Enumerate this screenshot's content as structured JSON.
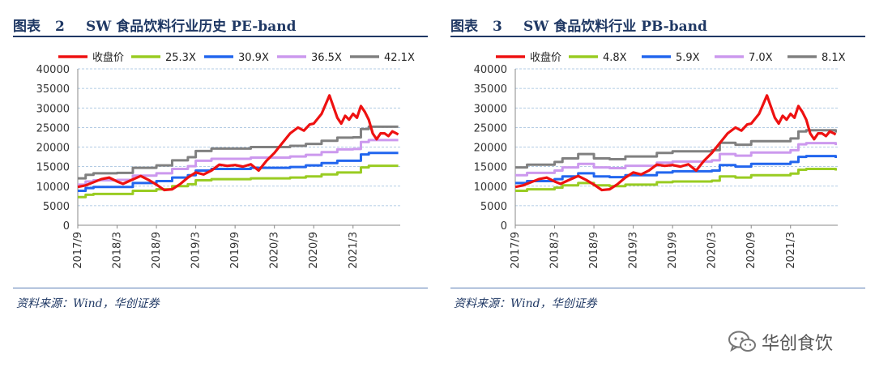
{
  "charts": [
    {
      "fig_label": "图表",
      "fig_number": "2",
      "title": "SW 食品饮料行业历史 PE-band",
      "source": "资料来源：Wind，华创证券"
    },
    {
      "fig_label": "图表",
      "fig_number": "3",
      "title": "SW 食品饮料行业 PB-band",
      "source": "资料来源：Wind，华创证券"
    }
  ],
  "watermark": "华创食饮",
  "watermark_icon": "wechat-icon",
  "colors": {
    "close": "#ee1111",
    "band1": "#99cc22",
    "band2": "#2266ee",
    "band3": "#cc99ee",
    "band4": "#808080",
    "title": "#1f3864"
  },
  "chart_data": [
    {
      "type": "line",
      "title": "SW 食品饮料行业历史 PE-band",
      "xlabel": "",
      "ylabel": "",
      "ylim": [
        0,
        40000
      ],
      "yticks": [
        "0",
        "5000",
        "10000",
        "15000",
        "20000",
        "25000",
        "30000",
        "35000",
        "40000"
      ],
      "categories": [
        "2017/9",
        "2018/3",
        "2018/9",
        "2019/3",
        "2019/9",
        "2020/3",
        "2020/9",
        "2021/3"
      ],
      "grid": true,
      "legend_position": "top",
      "series": [
        {
          "name": "收盘价",
          "key": "close",
          "kind": "close",
          "x": [
            0,
            0.2,
            0.4,
            0.6,
            0.8,
            1.0,
            1.15,
            1.35,
            1.6,
            1.8,
            2.0,
            2.2,
            2.4,
            2.6,
            2.8,
            3.0,
            3.2,
            3.4,
            3.6,
            3.8,
            4.0,
            4.2,
            4.4,
            4.6,
            4.8,
            5.0,
            5.2,
            5.4,
            5.6,
            5.75,
            5.9,
            6.0,
            6.2,
            6.4,
            6.6,
            6.7,
            6.8,
            6.9,
            7.0,
            7.1,
            7.2,
            7.3,
            7.4,
            7.5,
            7.6,
            7.7,
            7.8,
            7.9,
            8.0,
            8.1,
            8.15
          ],
          "values": [
            9800,
            10200,
            11000,
            11800,
            12200,
            11200,
            10600,
            11500,
            12600,
            11600,
            10400,
            9000,
            9200,
            10500,
            12200,
            13500,
            13000,
            14000,
            15500,
            15200,
            15400,
            15000,
            15600,
            14000,
            16500,
            18500,
            21000,
            23500,
            25000,
            24200,
            25800,
            26000,
            28500,
            33200,
            27500,
            26000,
            28000,
            27000,
            28500,
            27500,
            30500,
            29000,
            27000,
            23500,
            22000,
            23500,
            23500,
            22800,
            24000,
            23500,
            23200
          ]
        },
        {
          "name": "25.3X",
          "key": "band1",
          "kind": "band",
          "x": [
            0,
            0.2,
            0.4,
            1.0,
            1.4,
            2.0,
            2.4,
            2.8,
            3.0,
            3.4,
            4.0,
            4.4,
            5.0,
            5.4,
            5.8,
            6.2,
            6.6,
            7.0,
            7.2,
            7.4,
            8.15
          ],
          "values": [
            7200,
            7800,
            8000,
            8000,
            8800,
            9200,
            10000,
            10500,
            11500,
            11800,
            11800,
            12000,
            12000,
            12200,
            12500,
            13000,
            13500,
            13500,
            14800,
            15200,
            15200
          ]
        },
        {
          "name": "30.9X",
          "key": "band2",
          "kind": "band",
          "x": [
            0,
            0.2,
            0.4,
            1.0,
            1.4,
            2.0,
            2.4,
            2.8,
            3.0,
            3.4,
            4.0,
            4.4,
            5.0,
            5.4,
            5.8,
            6.2,
            6.6,
            7.0,
            7.2,
            7.4,
            8.15
          ],
          "values": [
            8800,
            9500,
            9800,
            9800,
            10800,
            11300,
            12200,
            12800,
            14000,
            14400,
            14400,
            14700,
            14700,
            14900,
            15300,
            15900,
            16500,
            16500,
            18100,
            18500,
            18500
          ]
        },
        {
          "name": "36.5X",
          "key": "band3",
          "kind": "band",
          "x": [
            0,
            0.2,
            0.4,
            1.0,
            1.4,
            2.0,
            2.4,
            2.8,
            3.0,
            3.4,
            4.0,
            4.4,
            5.0,
            5.4,
            5.8,
            6.2,
            6.6,
            7.0,
            7.2,
            7.4,
            8.15
          ],
          "values": [
            10400,
            11200,
            11500,
            11600,
            12700,
            13300,
            14400,
            15100,
            16500,
            17000,
            17000,
            17300,
            17300,
            17600,
            18000,
            18700,
            19400,
            19500,
            21300,
            21800,
            21800
          ]
        },
        {
          "name": "42.1X",
          "key": "band4",
          "kind": "band",
          "x": [
            0,
            0.2,
            0.4,
            1.0,
            1.4,
            2.0,
            2.4,
            2.8,
            3.0,
            3.4,
            4.0,
            4.4,
            5.0,
            5.4,
            5.8,
            6.2,
            6.6,
            7.0,
            7.2,
            7.4,
            8.15
          ],
          "values": [
            12000,
            12900,
            13300,
            13400,
            14700,
            15300,
            16600,
            17400,
            19000,
            19600,
            19600,
            20000,
            20000,
            20300,
            20800,
            21600,
            22400,
            22500,
            24600,
            25200,
            25200
          ]
        }
      ]
    },
    {
      "type": "line",
      "title": "SW 食品饮料行业 PB-band",
      "xlabel": "",
      "ylabel": "",
      "ylim": [
        0,
        40000
      ],
      "yticks": [
        "0",
        "5000",
        "10000",
        "15000",
        "20000",
        "25000",
        "30000",
        "35000",
        "40000"
      ],
      "categories": [
        "2017/9",
        "2018/3",
        "2018/9",
        "2019/3",
        "2019/9",
        "2020/3",
        "2020/9",
        "2021/3"
      ],
      "grid": true,
      "legend_position": "top",
      "series": [
        {
          "name": "收盘价",
          "key": "close",
          "kind": "close",
          "x": [
            0,
            0.2,
            0.4,
            0.6,
            0.8,
            1.0,
            1.15,
            1.35,
            1.6,
            1.8,
            2.0,
            2.2,
            2.4,
            2.6,
            2.8,
            3.0,
            3.2,
            3.4,
            3.6,
            3.8,
            4.0,
            4.2,
            4.4,
            4.6,
            4.8,
            5.0,
            5.2,
            5.4,
            5.6,
            5.75,
            5.9,
            6.0,
            6.2,
            6.4,
            6.6,
            6.7,
            6.8,
            6.9,
            7.0,
            7.1,
            7.2,
            7.3,
            7.4,
            7.5,
            7.6,
            7.7,
            7.8,
            7.9,
            8.0,
            8.1,
            8.15
          ],
          "values": [
            9800,
            10200,
            11000,
            11800,
            12200,
            11200,
            10600,
            11500,
            12600,
            11600,
            10400,
            9000,
            9200,
            10500,
            12200,
            13500,
            13000,
            14000,
            15500,
            15200,
            15400,
            15000,
            15600,
            14000,
            16500,
            18500,
            21000,
            23500,
            25000,
            24200,
            25800,
            26000,
            28500,
            33200,
            27500,
            26000,
            28000,
            27000,
            28500,
            27500,
            30500,
            29000,
            27000,
            23500,
            22000,
            23500,
            23500,
            22800,
            24000,
            23500,
            23200
          ]
        },
        {
          "name": "4.8X",
          "key": "band1",
          "kind": "band",
          "x": [
            0,
            0.3,
            1.0,
            1.2,
            1.6,
            2.0,
            2.4,
            2.8,
            3.2,
            3.6,
            4.0,
            4.4,
            5.0,
            5.2,
            5.6,
            6.0,
            6.6,
            7.0,
            7.2,
            7.4,
            8.15
          ],
          "values": [
            8800,
            9200,
            9600,
            10200,
            10800,
            10200,
            10000,
            10400,
            10400,
            11000,
            11200,
            11200,
            11400,
            12500,
            12200,
            12800,
            12800,
            13200,
            14200,
            14400,
            14000
          ]
        },
        {
          "name": "5.9X",
          "key": "band2",
          "kind": "band",
          "x": [
            0,
            0.3,
            1.0,
            1.2,
            1.6,
            2.0,
            2.4,
            2.8,
            3.2,
            3.6,
            4.0,
            4.4,
            5.0,
            5.2,
            5.6,
            6.0,
            6.6,
            7.0,
            7.2,
            7.4,
            8.15
          ],
          "values": [
            10800,
            11300,
            11800,
            12500,
            13300,
            12500,
            12300,
            12800,
            12800,
            13500,
            13800,
            13800,
            14000,
            15400,
            15000,
            15700,
            15700,
            16200,
            17500,
            17700,
            17200
          ]
        },
        {
          "name": "7.0X",
          "key": "band3",
          "kind": "band",
          "x": [
            0,
            0.3,
            1.0,
            1.2,
            1.6,
            2.0,
            2.4,
            2.8,
            3.2,
            3.6,
            4.0,
            4.4,
            5.0,
            5.2,
            5.6,
            6.0,
            6.6,
            7.0,
            7.2,
            7.4,
            8.15
          ],
          "values": [
            12800,
            13400,
            14000,
            14800,
            15700,
            14800,
            14600,
            15200,
            15200,
            16000,
            16300,
            16300,
            16600,
            18200,
            17800,
            18600,
            18600,
            19200,
            20700,
            21000,
            20500
          ]
        },
        {
          "name": "8.1X",
          "key": "band4",
          "kind": "band",
          "x": [
            0,
            0.3,
            1.0,
            1.2,
            1.6,
            2.0,
            2.4,
            2.8,
            3.2,
            3.6,
            4.0,
            4.4,
            5.0,
            5.2,
            5.6,
            6.0,
            6.6,
            7.0,
            7.2,
            7.4,
            8.15
          ],
          "values": [
            14800,
            15500,
            16200,
            17100,
            18200,
            17100,
            16900,
            17600,
            17600,
            18500,
            18900,
            18900,
            19200,
            21100,
            20600,
            21500,
            21500,
            22200,
            24000,
            24300,
            23700
          ]
        }
      ]
    }
  ]
}
